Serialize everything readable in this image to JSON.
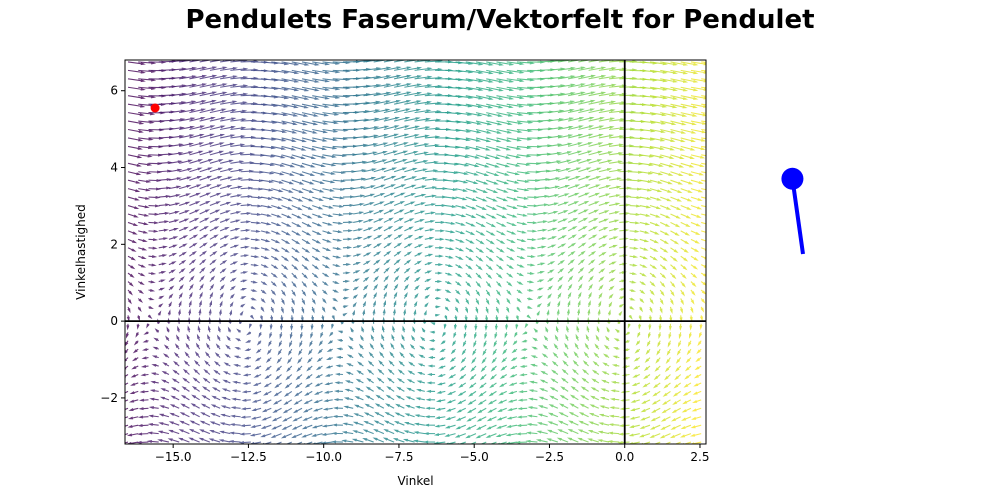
{
  "title": "Pendulets Faserum/Vektorfelt for Pendulet",
  "chart_data": {
    "type": "quiver",
    "title": "",
    "xlabel": "Vinkel",
    "ylabel": "Vinkelhastighed",
    "xlim": [
      -16.6,
      2.7
    ],
    "ylim": [
      -3.2,
      6.8
    ],
    "xticks": [
      -15.0,
      -12.5,
      -10.0,
      -7.5,
      -5.0,
      -2.5,
      0.0,
      2.5
    ],
    "xtick_labels": [
      "−15.0",
      "−12.5",
      "−10.0",
      "−7.5",
      "−5.0",
      "−2.5",
      "0.0",
      "2.5"
    ],
    "yticks": [
      -2,
      0,
      2,
      4,
      6
    ],
    "ytick_labels": [
      "−2",
      "0",
      "2",
      "4",
      "6"
    ],
    "field": {
      "equation": "theta' = omega, omega' = -sin(theta)",
      "grid_x_step": 0.34,
      "grid_y_step": 0.22,
      "colormap": "viridis",
      "color_by": "x"
    },
    "reference_lines": [
      {
        "orientation": "vertical",
        "value": 0,
        "color": "#000000"
      },
      {
        "orientation": "horizontal",
        "value": 0,
        "color": "#000000"
      }
    ],
    "current_state": {
      "x": -15.6,
      "y": 5.55,
      "color": "#ff0000"
    },
    "grid": false
  },
  "pendulum": {
    "angle_deg": 8,
    "color": "#0000ff"
  }
}
